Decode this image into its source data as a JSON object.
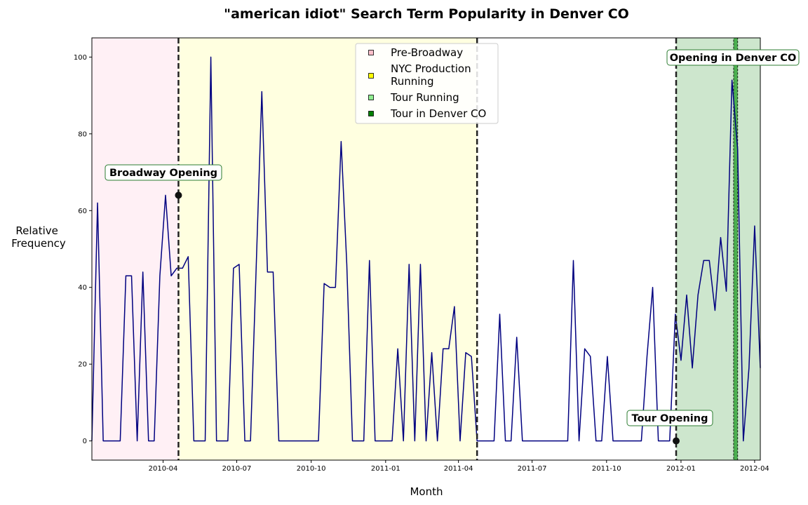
{
  "chart_data": {
    "type": "line",
    "title": "\"american idiot\" Search Term Popularity in Denver CO",
    "xlabel": "Month",
    "ylabel": "Relative\nFrequency",
    "x_range": [
      "2010-01-03",
      "2012-04-08"
    ],
    "ylim": [
      -5,
      105
    ],
    "y_ticks": [
      0,
      20,
      40,
      60,
      80,
      100
    ],
    "x_ticks": [
      {
        "date": "2010-04-01",
        "label": "2010-04"
      },
      {
        "date": "2010-07-01",
        "label": "2010-07"
      },
      {
        "date": "2010-10-01",
        "label": "2010-10"
      },
      {
        "date": "2011-01-01",
        "label": "2011-01"
      },
      {
        "date": "2011-04-01",
        "label": "2011-04"
      },
      {
        "date": "2011-07-01",
        "label": "2011-07"
      },
      {
        "date": "2011-10-01",
        "label": "2011-10"
      },
      {
        "date": "2012-01-01",
        "label": "2012-01"
      },
      {
        "date": "2012-04-01",
        "label": "2012-04"
      }
    ],
    "grid": false,
    "legend_position": "top-center",
    "series": [
      {
        "color": "#000080",
        "points": [
          [
            "2010-01-03",
            0
          ],
          [
            "2010-01-10",
            62
          ],
          [
            "2010-01-17",
            0
          ],
          [
            "2010-01-24",
            0
          ],
          [
            "2010-01-31",
            0
          ],
          [
            "2010-02-07",
            0
          ],
          [
            "2010-02-14",
            43
          ],
          [
            "2010-02-21",
            43
          ],
          [
            "2010-02-28",
            0
          ],
          [
            "2010-03-07",
            44
          ],
          [
            "2010-03-14",
            0
          ],
          [
            "2010-03-21",
            0
          ],
          [
            "2010-03-28",
            43
          ],
          [
            "2010-04-04",
            64
          ],
          [
            "2010-04-11",
            43
          ],
          [
            "2010-04-18",
            45
          ],
          [
            "2010-04-25",
            45
          ],
          [
            "2010-05-02",
            48
          ],
          [
            "2010-05-09",
            0
          ],
          [
            "2010-05-16",
            0
          ],
          [
            "2010-05-23",
            0
          ],
          [
            "2010-05-30",
            100
          ],
          [
            "2010-06-06",
            0
          ],
          [
            "2010-06-13",
            0
          ],
          [
            "2010-06-20",
            0
          ],
          [
            "2010-06-27",
            45
          ],
          [
            "2010-07-04",
            46
          ],
          [
            "2010-07-11",
            0
          ],
          [
            "2010-07-18",
            0
          ],
          [
            "2010-07-25",
            45
          ],
          [
            "2010-08-01",
            91
          ],
          [
            "2010-08-08",
            44
          ],
          [
            "2010-08-15",
            44
          ],
          [
            "2010-08-22",
            0
          ],
          [
            "2010-08-29",
            0
          ],
          [
            "2010-09-05",
            0
          ],
          [
            "2010-09-12",
            0
          ],
          [
            "2010-09-19",
            0
          ],
          [
            "2010-09-26",
            0
          ],
          [
            "2010-10-03",
            0
          ],
          [
            "2010-10-10",
            0
          ],
          [
            "2010-10-17",
            41
          ],
          [
            "2010-10-24",
            40
          ],
          [
            "2010-10-31",
            40
          ],
          [
            "2010-11-07",
            78
          ],
          [
            "2010-11-14",
            46
          ],
          [
            "2010-11-21",
            0
          ],
          [
            "2010-11-28",
            0
          ],
          [
            "2010-12-05",
            0
          ],
          [
            "2010-12-12",
            47
          ],
          [
            "2010-12-19",
            0
          ],
          [
            "2010-12-26",
            0
          ],
          [
            "2011-01-02",
            0
          ],
          [
            "2011-01-09",
            0
          ],
          [
            "2011-01-16",
            24
          ],
          [
            "2011-01-23",
            0
          ],
          [
            "2011-01-30",
            46
          ],
          [
            "2011-02-06",
            0
          ],
          [
            "2011-02-13",
            46
          ],
          [
            "2011-02-20",
            0
          ],
          [
            "2011-02-27",
            23
          ],
          [
            "2011-03-06",
            0
          ],
          [
            "2011-03-13",
            24
          ],
          [
            "2011-03-20",
            24
          ],
          [
            "2011-03-27",
            35
          ],
          [
            "2011-04-03",
            0
          ],
          [
            "2011-04-10",
            23
          ],
          [
            "2011-04-17",
            22
          ],
          [
            "2011-04-24",
            0
          ],
          [
            "2011-05-01",
            0
          ],
          [
            "2011-05-08",
            0
          ],
          [
            "2011-05-15",
            0
          ],
          [
            "2011-05-22",
            33
          ],
          [
            "2011-05-29",
            0
          ],
          [
            "2011-06-05",
            0
          ],
          [
            "2011-06-12",
            27
          ],
          [
            "2011-06-19",
            0
          ],
          [
            "2011-06-26",
            0
          ],
          [
            "2011-07-03",
            0
          ],
          [
            "2011-07-10",
            0
          ],
          [
            "2011-07-17",
            0
          ],
          [
            "2011-07-24",
            0
          ],
          [
            "2011-07-31",
            0
          ],
          [
            "2011-08-07",
            0
          ],
          [
            "2011-08-14",
            0
          ],
          [
            "2011-08-21",
            47
          ],
          [
            "2011-08-28",
            0
          ],
          [
            "2011-09-04",
            24
          ],
          [
            "2011-09-11",
            22
          ],
          [
            "2011-09-18",
            0
          ],
          [
            "2011-09-25",
            0
          ],
          [
            "2011-10-02",
            22
          ],
          [
            "2011-10-09",
            0
          ],
          [
            "2011-10-16",
            0
          ],
          [
            "2011-10-23",
            0
          ],
          [
            "2011-10-30",
            0
          ],
          [
            "2011-11-06",
            0
          ],
          [
            "2011-11-13",
            0
          ],
          [
            "2011-11-20",
            22
          ],
          [
            "2011-11-27",
            40
          ],
          [
            "2011-12-04",
            0
          ],
          [
            "2011-12-11",
            0
          ],
          [
            "2011-12-18",
            0
          ],
          [
            "2011-12-25",
            33
          ],
          [
            "2012-01-01",
            21
          ],
          [
            "2012-01-08",
            38
          ],
          [
            "2012-01-15",
            19
          ],
          [
            "2012-01-22",
            38
          ],
          [
            "2012-01-29",
            47
          ],
          [
            "2012-02-05",
            47
          ],
          [
            "2012-02-12",
            34
          ],
          [
            "2012-02-19",
            53
          ],
          [
            "2012-02-26",
            39
          ],
          [
            "2012-03-04",
            94
          ],
          [
            "2012-03-11",
            76
          ],
          [
            "2012-03-18",
            0
          ],
          [
            "2012-03-25",
            19
          ],
          [
            "2012-04-01",
            56
          ],
          [
            "2012-04-08",
            19
          ]
        ]
      }
    ],
    "regions": [
      {
        "label": "Pre-Broadway",
        "start": "2010-01-03",
        "end": "2010-04-20",
        "color": "#fff0f5",
        "swatch": "#ffc0cb"
      },
      {
        "label": "NYC Production Running",
        "start": "2010-04-20",
        "end": "2011-04-24",
        "color": "#ffffe0",
        "swatch": "#ffff00"
      },
      {
        "label": "Tour Running",
        "start": "2011-12-26",
        "end": "2012-04-08",
        "color": "#cde6cd",
        "swatch": "#90ee90"
      },
      {
        "label": "Tour in Denver CO",
        "start": "2012-03-06",
        "end": "2012-03-11",
        "color": "#4caf50",
        "swatch": "#008000"
      }
    ],
    "vlines": [
      "2010-04-20",
      "2011-04-24",
      "2011-12-26"
    ],
    "annotations": [
      {
        "text": "Broadway Opening",
        "date": "2010-04-20",
        "value": 64,
        "marker": true
      },
      {
        "text": "Tour Opening",
        "date": "2011-12-26",
        "value": 0,
        "marker": true
      },
      {
        "text": "Opening in Denver CO",
        "date": "2012-03-06",
        "value": 100,
        "marker": false
      }
    ]
  }
}
